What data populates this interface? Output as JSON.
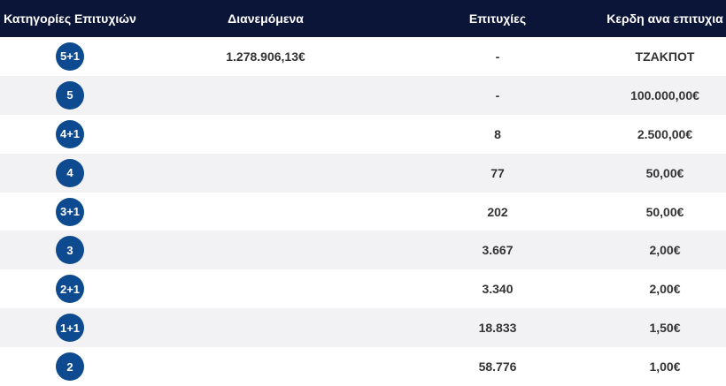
{
  "colors": {
    "header_bg": "#0b1537",
    "header_text": "#ffffff",
    "ball_bg": "#0d4a8f",
    "row_alt_bg": "#f2f2f4"
  },
  "header": {
    "col1": "Κατηγορίες Επιτυχιών",
    "col2": "Διανεμόμενα",
    "col3": "Επιτυχίες",
    "col4": "Κερδη ανα επιτυχια"
  },
  "rows": [
    {
      "category": "5+1",
      "distributed": "1.278.906,13€",
      "winners": "-",
      "prize": "ΤΖΑΚΠΟΤ"
    },
    {
      "category": "5",
      "distributed": "",
      "winners": "-",
      "prize": "100.000,00€"
    },
    {
      "category": "4+1",
      "distributed": "",
      "winners": "8",
      "prize": "2.500,00€"
    },
    {
      "category": "4",
      "distributed": "",
      "winners": "77",
      "prize": "50,00€"
    },
    {
      "category": "3+1",
      "distributed": "",
      "winners": "202",
      "prize": "50,00€"
    },
    {
      "category": "3",
      "distributed": "",
      "winners": "3.667",
      "prize": "2,00€"
    },
    {
      "category": "2+1",
      "distributed": "",
      "winners": "3.340",
      "prize": "2,00€"
    },
    {
      "category": "1+1",
      "distributed": "",
      "winners": "18.833",
      "prize": "1,50€"
    },
    {
      "category": "2",
      "distributed": "",
      "winners": "58.776",
      "prize": "1,00€"
    }
  ]
}
